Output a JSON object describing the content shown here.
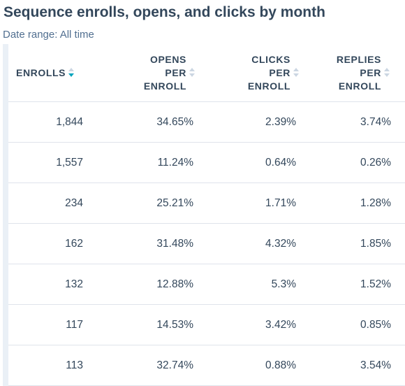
{
  "report": {
    "title": "Sequence enrolls, opens, and clicks by month",
    "date_range": "Date range: All time"
  },
  "columns": [
    {
      "line1": "",
      "line2": "ENROLLS",
      "line3": "",
      "sort": "descending"
    },
    {
      "line1": "OPENS",
      "line2": "PER",
      "line3": "ENROLL",
      "sort": "none"
    },
    {
      "line1": "CLICKS",
      "line2": "PER",
      "line3": "ENROLL",
      "sort": "none"
    },
    {
      "line1": "REPLIES",
      "line2": "PER",
      "line3": "ENROLL",
      "sort": "none"
    }
  ],
  "rows": [
    {
      "enrolls": "1,844",
      "opens": "34.65%",
      "clicks": "2.39%",
      "replies": "3.74%"
    },
    {
      "enrolls": "1,557",
      "opens": "11.24%",
      "clicks": "0.64%",
      "replies": "0.26%"
    },
    {
      "enrolls": "234",
      "opens": "25.21%",
      "clicks": "1.71%",
      "replies": "1.28%"
    },
    {
      "enrolls": "162",
      "opens": "31.48%",
      "clicks": "4.32%",
      "replies": "1.85%"
    },
    {
      "enrolls": "132",
      "opens": "12.88%",
      "clicks": "5.3%",
      "replies": "1.52%"
    },
    {
      "enrolls": "117",
      "opens": "14.53%",
      "clicks": "3.42%",
      "replies": "0.85%"
    },
    {
      "enrolls": "113",
      "opens": "32.74%",
      "clicks": "0.88%",
      "replies": "3.54%"
    }
  ],
  "colors": {
    "text": "#33475b",
    "muted": "#516f90",
    "sort_active": "#00a4bd",
    "sort_inactive": "#cbd6e2",
    "border": "#dfe3eb"
  },
  "icons": {
    "sort": "sort-arrows-icon"
  }
}
